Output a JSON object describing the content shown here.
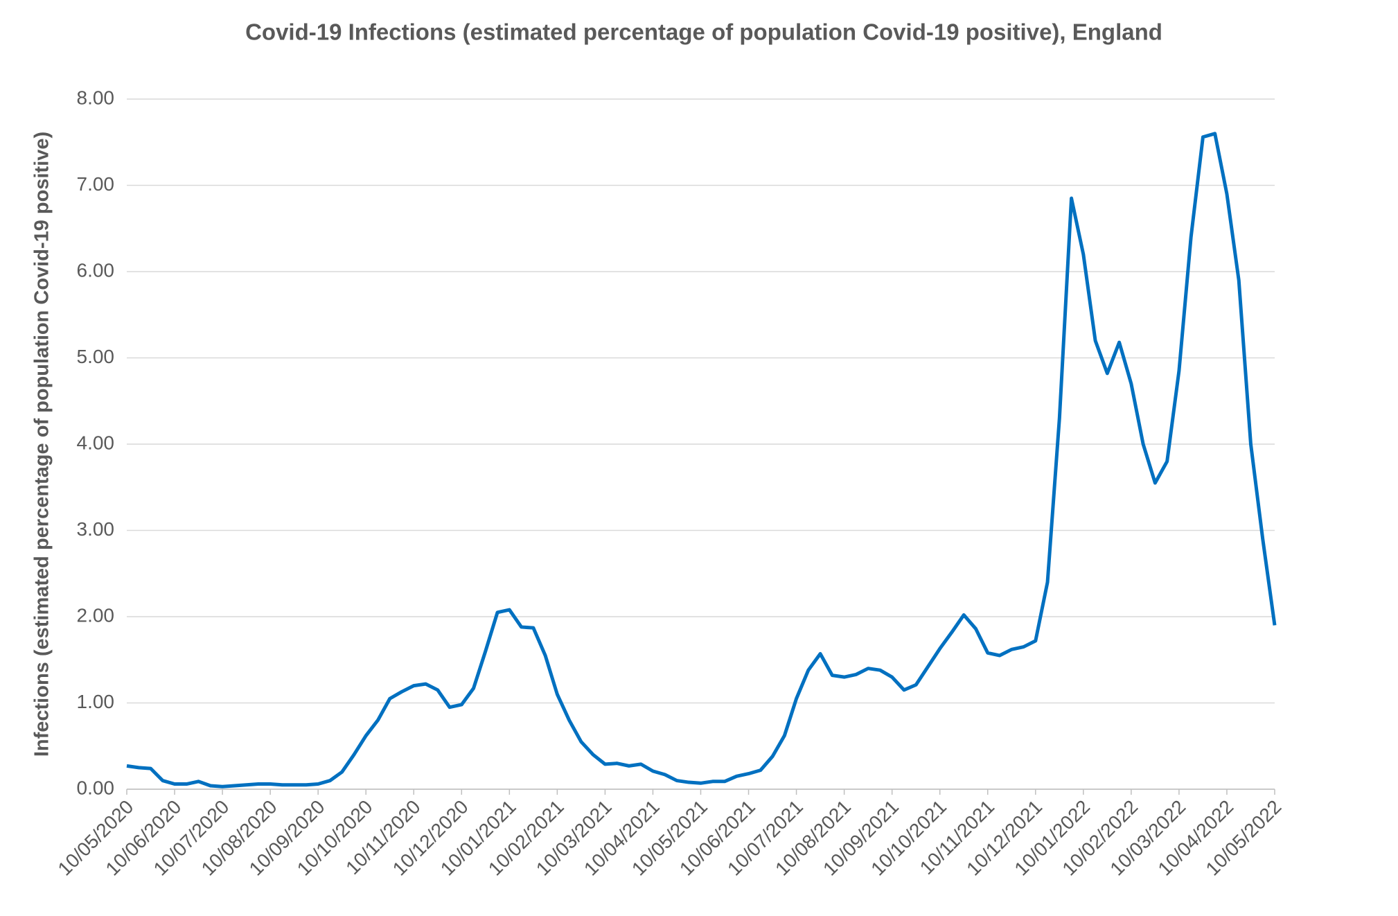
{
  "chart_data": {
    "type": "line",
    "title": "Covid-19 Infections (estimated percentage of population Covid-19 positive), England",
    "y_label": "Infections (estimated percentage of population Covid-19 positive)",
    "categories": [
      "10/05/2020",
      null,
      null,
      null,
      "10/06/2020",
      null,
      null,
      null,
      "10/07/2020",
      null,
      null,
      null,
      "10/08/2020",
      null,
      null,
      null,
      "10/09/2020",
      null,
      null,
      null,
      "10/10/2020",
      null,
      null,
      null,
      "10/11/2020",
      null,
      null,
      null,
      "10/12/2020",
      null,
      null,
      null,
      "10/01/2021",
      null,
      null,
      null,
      "10/02/2021",
      null,
      null,
      null,
      "10/03/2021",
      null,
      null,
      null,
      "10/04/2021",
      null,
      null,
      null,
      "10/05/2021",
      null,
      null,
      null,
      "10/06/2021",
      null,
      null,
      null,
      "10/07/2021",
      null,
      null,
      null,
      "10/08/2021",
      null,
      null,
      null,
      "10/09/2021",
      null,
      null,
      null,
      "10/10/2021",
      null,
      null,
      null,
      "10/11/2021",
      null,
      null,
      null,
      "10/12/2021",
      null,
      null,
      null,
      "10/01/2022",
      null,
      null,
      null,
      "10/02/2022",
      null,
      null,
      null,
      "10/03/2022",
      null,
      null,
      null,
      "10/04/2022",
      null,
      null,
      null,
      "10/05/2022"
    ],
    "series": [
      {
        "color": "#0070c0",
        "values": [
          0.27,
          0.25,
          0.24,
          0.1,
          0.06,
          0.06,
          0.09,
          0.04,
          0.03,
          0.04,
          0.05,
          0.06,
          0.06,
          0.05,
          0.05,
          0.05,
          0.06,
          0.1,
          0.2,
          0.4,
          0.62,
          0.8,
          1.05,
          1.13,
          1.2,
          1.22,
          1.15,
          0.95,
          0.98,
          1.17,
          1.6,
          2.05,
          2.08,
          1.88,
          1.87,
          1.55,
          1.1,
          0.8,
          0.55,
          0.4,
          0.29,
          0.3,
          0.27,
          0.29,
          0.21,
          0.17,
          0.1,
          0.08,
          0.07,
          0.09,
          0.09,
          0.15,
          0.18,
          0.22,
          0.38,
          0.62,
          1.05,
          1.38,
          1.57,
          1.32,
          1.3,
          1.33,
          1.4,
          1.38,
          1.3,
          1.15,
          1.21,
          1.42,
          1.63,
          1.82,
          2.02,
          1.86,
          1.58,
          1.55,
          1.62,
          1.65,
          1.72,
          2.4,
          4.3,
          6.85,
          6.2,
          5.2,
          4.82,
          5.18,
          4.7,
          4.0,
          3.55,
          3.8,
          4.85,
          6.4,
          7.56,
          7.6,
          6.9,
          5.9,
          4.0,
          2.9,
          1.9
        ]
      }
    ],
    "ylim": [
      0,
      8
    ],
    "yticks": [
      {
        "value": 0,
        "label": "0.00"
      },
      {
        "value": 1,
        "label": "1.00"
      },
      {
        "value": 2,
        "label": "2.00"
      },
      {
        "value": 3,
        "label": "3.00"
      },
      {
        "value": 4,
        "label": "4.00"
      },
      {
        "value": 5,
        "label": "5.00"
      },
      {
        "value": 6,
        "label": "6.00"
      },
      {
        "value": 7,
        "label": "7.00"
      },
      {
        "value": 8,
        "label": "8.00"
      }
    ],
    "grid": true
  }
}
